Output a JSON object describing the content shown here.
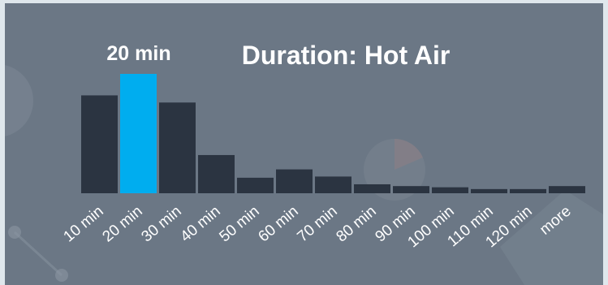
{
  "chart_data": {
    "type": "bar",
    "title": "Duration: Hot Air",
    "highlight_label": "20 min",
    "highlight_index": 1,
    "categories": [
      "10 min",
      "20 min",
      "30 min",
      "40 min",
      "50 min",
      "60 min",
      "70 min",
      "80 min",
      "90 min",
      "100 min",
      "110 min",
      "120 min",
      "more"
    ],
    "values": [
      82,
      100,
      76,
      32,
      13,
      20,
      14,
      7.5,
      6,
      5,
      3.5,
      3.5,
      6
    ],
    "ylim": [
      0,
      100
    ],
    "grid": false,
    "xlabel": "",
    "ylabel": "",
    "colors": {
      "bar": "#2b3441",
      "highlight": "#00adef",
      "text": "#ffffff",
      "background": "#6b7785"
    }
  }
}
